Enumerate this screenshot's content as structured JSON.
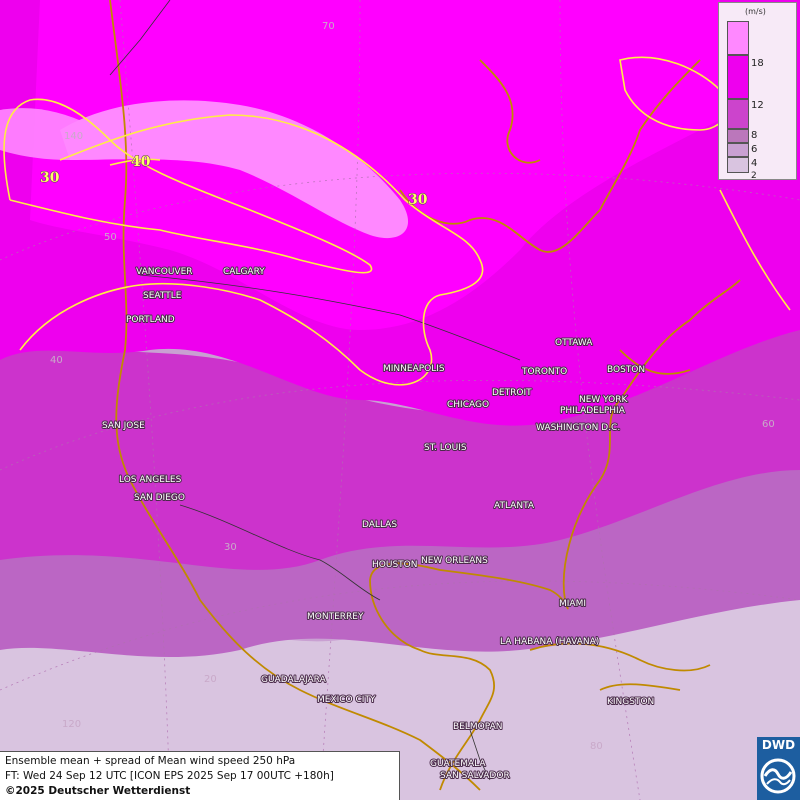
{
  "map": {
    "cities": [
      {
        "name": "VANCOUVER"
      },
      {
        "name": "CALGARY"
      },
      {
        "name": "SEATTLE"
      },
      {
        "name": "PORTLAND"
      },
      {
        "name": "SAN JOSE"
      },
      {
        "name": "LOS ANGELES"
      },
      {
        "name": "SAN DIEGO"
      },
      {
        "name": "MINNEAPOLIS"
      },
      {
        "name": "OTTAWA"
      },
      {
        "name": "TORONTO"
      },
      {
        "name": "BOSTON"
      },
      {
        "name": "DETROIT"
      },
      {
        "name": "CHICAGO"
      },
      {
        "name": "NEW YORK"
      },
      {
        "name": "PHILADELPHIA"
      },
      {
        "name": "WASHINGTON D.C."
      },
      {
        "name": "ST. LOUIS"
      },
      {
        "name": "ATLANTA"
      },
      {
        "name": "DALLAS"
      },
      {
        "name": "HOUSTON"
      },
      {
        "name": "NEW ORLEANS"
      },
      {
        "name": "MIAMI"
      },
      {
        "name": "MONTERREY"
      },
      {
        "name": "LA HABANA (HAVANA)"
      },
      {
        "name": "GUADALAJARA"
      },
      {
        "name": "MEXICO CITY"
      },
      {
        "name": "KINGSTON"
      },
      {
        "name": "BELMOPAN"
      },
      {
        "name": "GUATEMALA"
      },
      {
        "name": "SAN SALVADOR"
      }
    ],
    "graticule_labels": [
      "70",
      "140",
      "50",
      "40",
      "30",
      "20",
      "120",
      "60",
      "80"
    ],
    "isoline_labels": [
      "30",
      "40",
      "30"
    ],
    "colors": {
      "shade_18plus": "#ff00ff",
      "shade_12_18": "#ee00ee",
      "shade_8_12": "#cc44cc",
      "shade_6_8": "#bb77bb",
      "shade_4_6": "#c9a0d2",
      "shade_2_4": "#d9c4e0",
      "shade_top": "#ff88ff",
      "isoline": "#ffee44",
      "coast": "#c08a00",
      "border": "#333333"
    }
  },
  "legend": {
    "unit": "(m/s)",
    "ticks": [
      "18",
      "12",
      "8",
      "6",
      "4",
      "2"
    ]
  },
  "info": {
    "line1": "Ensemble mean + spread of Mean wind speed 250 hPa",
    "line2": "FT: Wed 24 Sep 12 UTC [ICON EPS 2025 Sep 17 00UTC +180h]",
    "line3": "©2025 Deutscher Wetterdienst"
  },
  "logo": {
    "text": "DWD"
  }
}
